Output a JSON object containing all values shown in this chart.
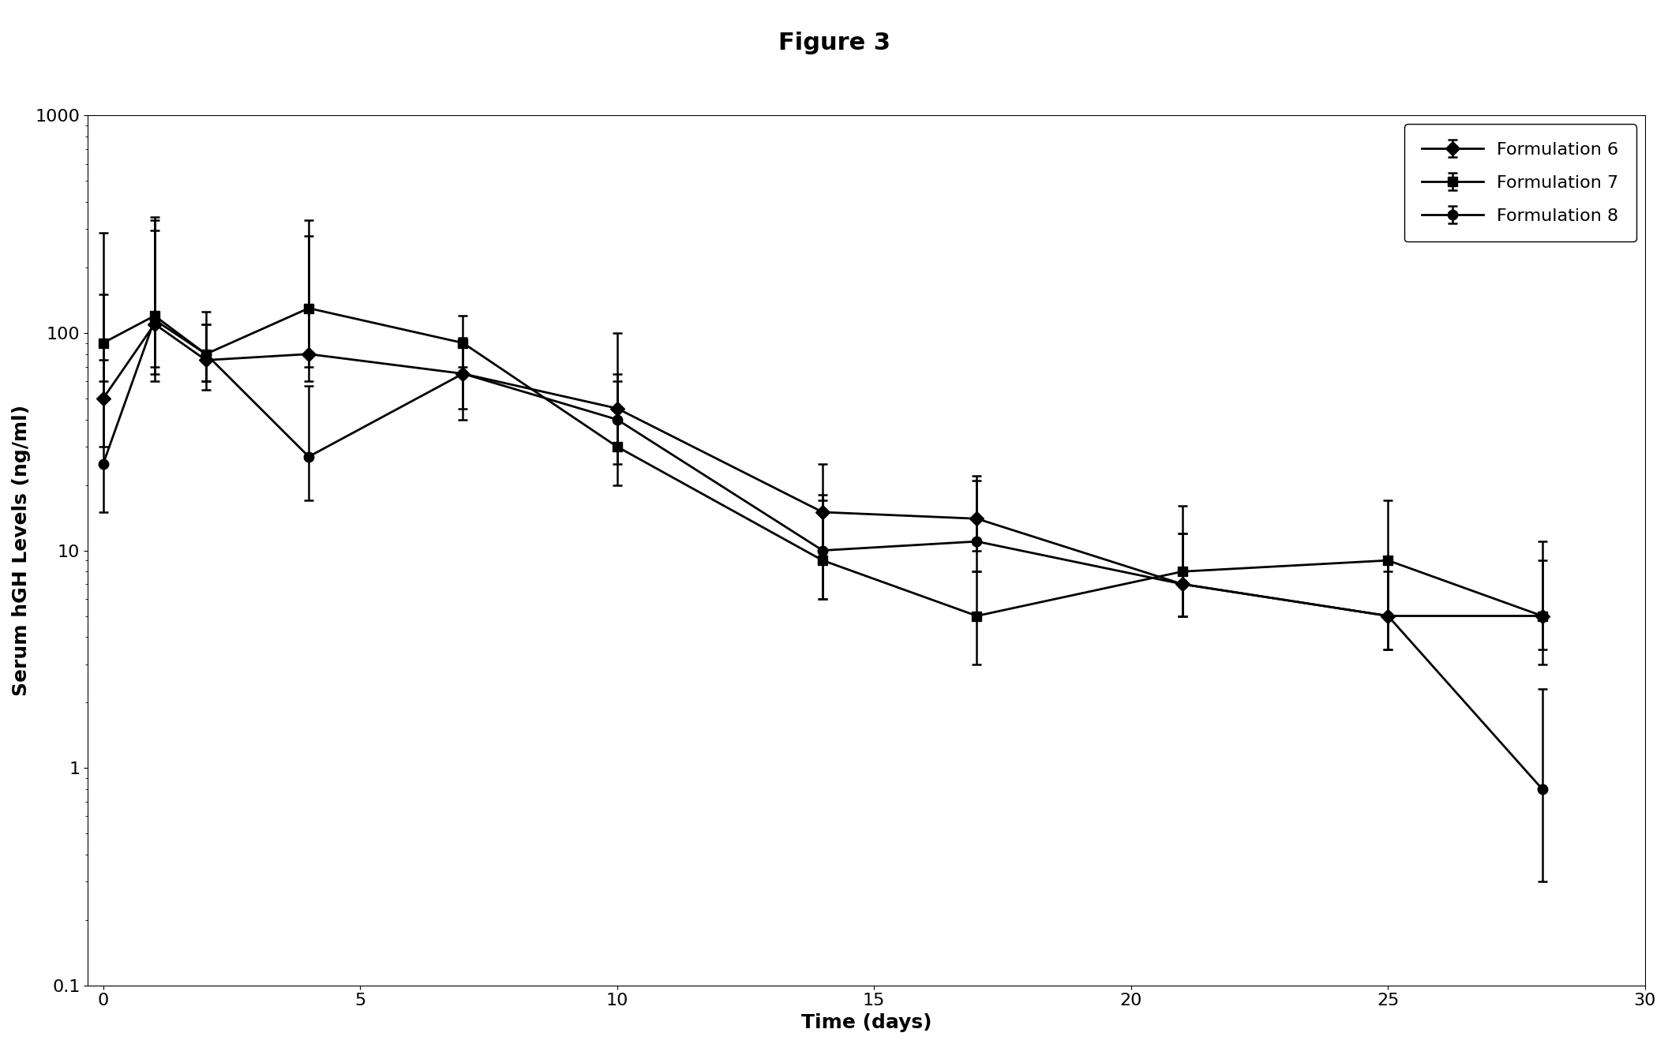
{
  "title": "Figure 3",
  "xlabel": "Time (days)",
  "ylabel": "Serum hGH Levels (ng/ml)",
  "xlim": [
    -0.3,
    30
  ],
  "ylim": [
    0.1,
    1000
  ],
  "xticks": [
    0,
    5,
    10,
    15,
    20,
    25,
    30
  ],
  "series": [
    {
      "label": "Formulation 6",
      "marker": "D",
      "color": "#000000",
      "x": [
        0,
        1,
        2,
        4,
        7,
        10,
        14,
        17,
        21,
        25,
        28
      ],
      "y": [
        50,
        110,
        75,
        80,
        65,
        45,
        15,
        14,
        7,
        5,
        5
      ],
      "yerr_lo": [
        20,
        50,
        20,
        20,
        25,
        15,
        5,
        4,
        2,
        1.5,
        1.5
      ],
      "yerr_hi": [
        100,
        220,
        50,
        200,
        30,
        55,
        10,
        8,
        5,
        4,
        4
      ]
    },
    {
      "label": "Formulation 7",
      "marker": "s",
      "color": "#000000",
      "x": [
        0,
        1,
        2,
        4,
        7,
        10,
        14,
        17,
        21,
        25,
        28
      ],
      "y": [
        90,
        120,
        80,
        130,
        90,
        30,
        9,
        5,
        8,
        9,
        5
      ],
      "yerr_lo": [
        30,
        50,
        20,
        60,
        20,
        10,
        3,
        2,
        3,
        4,
        2
      ],
      "yerr_hi": [
        200,
        220,
        30,
        200,
        30,
        30,
        8,
        3,
        8,
        8,
        6
      ]
    },
    {
      "label": "Formulation 8",
      "marker": "o",
      "color": "#000000",
      "x": [
        0,
        1,
        2,
        4,
        7,
        10,
        14,
        17,
        21,
        25,
        28
      ],
      "y": [
        25,
        115,
        80,
        27,
        65,
        40,
        10,
        11,
        7,
        5,
        0.8
      ],
      "yerr_lo": [
        10,
        50,
        20,
        10,
        20,
        15,
        4,
        3,
        2,
        1.5,
        0.5
      ],
      "yerr_hi": [
        50,
        180,
        30,
        30,
        25,
        25,
        8,
        10,
        5,
        3,
        1.5
      ]
    }
  ],
  "background_color": "#ffffff",
  "title_fontsize": 22,
  "label_fontsize": 18,
  "tick_fontsize": 16,
  "legend_fontsize": 16,
  "linewidth": 2.0,
  "markersize": 9,
  "figwidth": 21.13,
  "figheight": 13.23,
  "dpi": 100
}
